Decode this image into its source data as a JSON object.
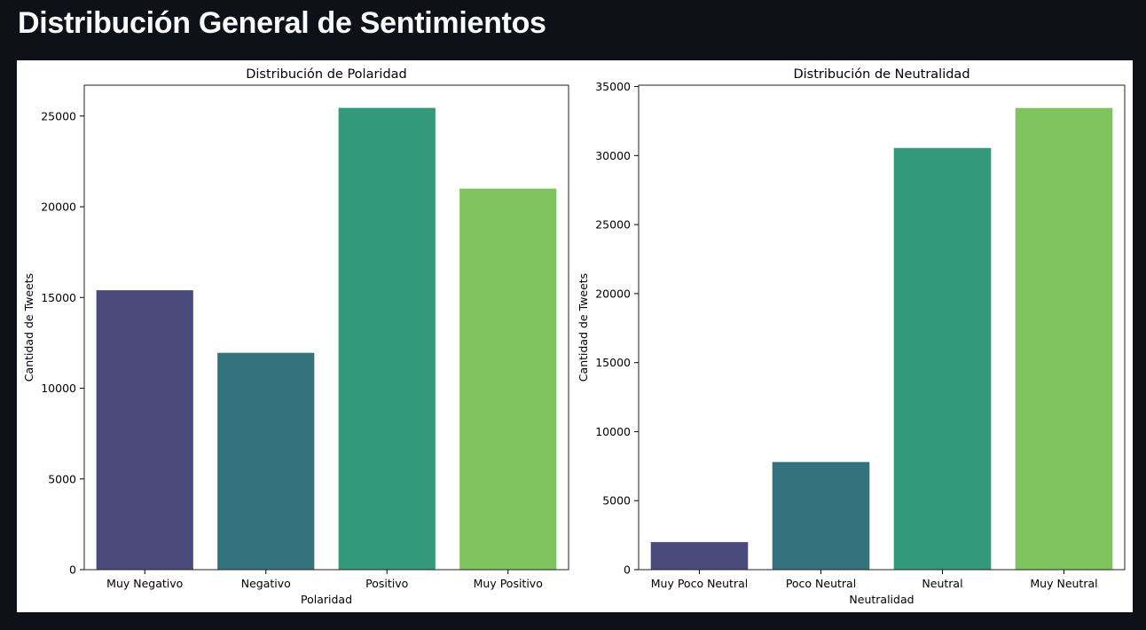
{
  "page": {
    "title": "Distribución General de Sentimientos"
  },
  "colors": {
    "background": "#0e1117",
    "figure_bg": "#ffffff",
    "palette": [
      "#4a4a7d",
      "#35727f",
      "#34997a",
      "#7fc45f"
    ]
  },
  "chart_data": [
    {
      "type": "bar",
      "title": "Distribución de Polaridad",
      "xlabel": "Polaridad",
      "ylabel": "Cantidad de Tweets",
      "categories": [
        "Muy Negativo",
        "Negativo",
        "Positivo",
        "Muy Positivo"
      ],
      "values": [
        15400,
        11950,
        25450,
        21000
      ],
      "ylim": [
        0,
        26700
      ],
      "yticks": [
        0,
        5000,
        10000,
        15000,
        20000,
        25000
      ],
      "grid": false,
      "legend": "none"
    },
    {
      "type": "bar",
      "title": "Distribución de Neutralidad",
      "xlabel": "Neutralidad",
      "ylabel": "Cantidad de Tweets",
      "categories": [
        "Muy Poco Neutral",
        "Poco Neutral",
        "Neutral",
        "Muy Neutral"
      ],
      "values": [
        2000,
        7800,
        30550,
        33450
      ],
      "ylim": [
        0,
        35100
      ],
      "yticks": [
        0,
        5000,
        10000,
        15000,
        20000,
        25000,
        30000,
        35000
      ],
      "grid": false,
      "legend": "none"
    }
  ]
}
